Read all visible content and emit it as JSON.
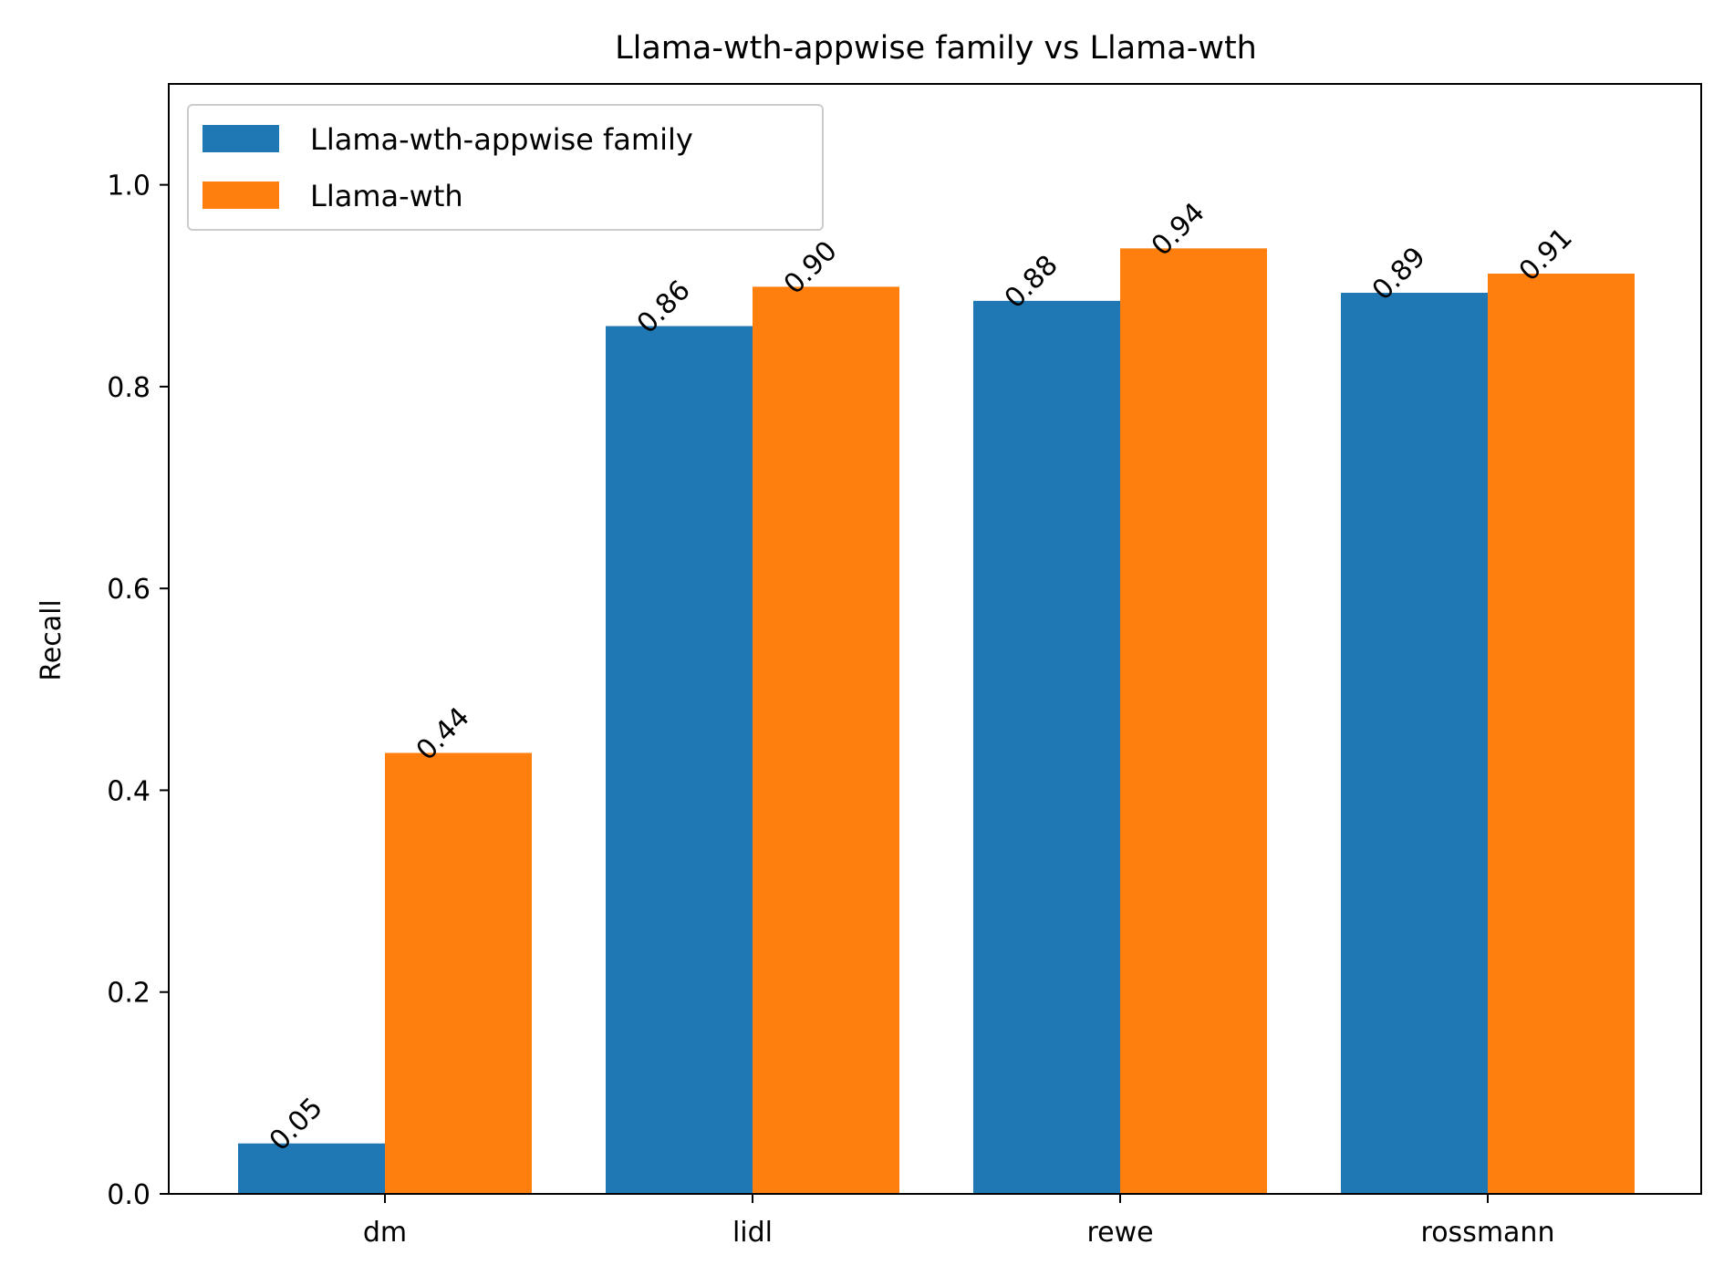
{
  "chart_data": {
    "type": "bar",
    "title": "Llama-wth-appwise family vs Llama-wth",
    "xlabel": "",
    "ylabel": "Recall",
    "categories": [
      "dm",
      "lidl",
      "rewe",
      "rossmann"
    ],
    "series": [
      {
        "name": "Llama-wth-appwise family",
        "color": "#1f77b4",
        "values": [
          0.05,
          0.86,
          0.885,
          0.893
        ],
        "labels": [
          "0.05",
          "0.86",
          "0.88",
          "0.89"
        ]
      },
      {
        "name": "Llama-wth",
        "color": "#ff7f0e",
        "values": [
          0.437,
          0.899,
          0.937,
          0.912
        ],
        "labels": [
          "0.44",
          "0.90",
          "0.94",
          "0.91"
        ]
      }
    ],
    "ylim": [
      0,
      1.1
    ],
    "yticks": [
      0.0,
      0.2,
      0.4,
      0.6,
      0.8,
      1.0
    ],
    "ytick_labels": [
      "0.0",
      "0.2",
      "0.4",
      "0.6",
      "0.8",
      "1.0"
    ],
    "grid": false,
    "legend": "upper-left"
  }
}
